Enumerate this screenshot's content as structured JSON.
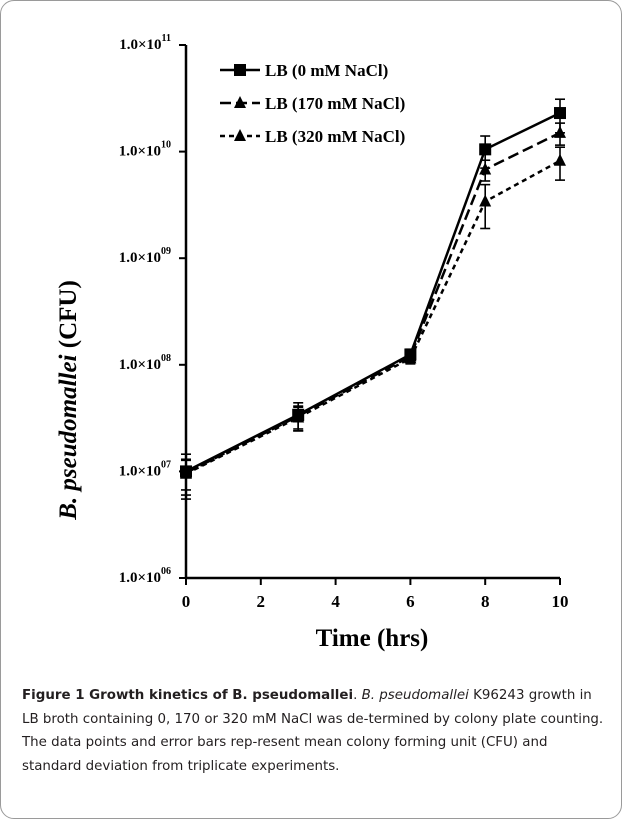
{
  "chart_data": {
    "type": "line",
    "xlabel": "Time (hrs)",
    "ylabel_italic": "B. pseudomallei",
    "ylabel_rest": " (CFU)",
    "y_scale": "log",
    "ylim": [
      1000000,
      100000000000
    ],
    "xlim": [
      0,
      10
    ],
    "x_ticks": [
      "0",
      "2",
      "4",
      "6",
      "8",
      "10"
    ],
    "y_ticks": [
      {
        "value": 1000000,
        "base": "1.0×10",
        "exp": "06"
      },
      {
        "value": 10000000,
        "base": "1.0×10",
        "exp": "07"
      },
      {
        "value": 100000000,
        "base": "1.0×10",
        "exp": "08"
      },
      {
        "value": 1000000000,
        "base": "1.0×10",
        "exp": "09"
      },
      {
        "value": 10000000000,
        "base": "1.0×10",
        "exp": "10"
      },
      {
        "value": 100000000000,
        "base": "1.0×10",
        "exp": "11"
      }
    ],
    "grid": false,
    "legend_position": "top-left",
    "x": [
      0,
      3,
      6,
      8,
      10
    ],
    "series": [
      {
        "name": "LB (0 mM NaCl)",
        "marker": "square",
        "dash": "solid",
        "values": [
          10000000,
          34000000,
          125000000,
          10500000000,
          23000000000
        ],
        "errors": [
          4500000,
          10000000,
          15000000,
          3500000000,
          8000000000
        ]
      },
      {
        "name": "LB (170 mM NaCl)",
        "marker": "triangle",
        "dash": "long",
        "values": [
          9700000,
          33000000,
          120000000,
          6800000000,
          15000000000
        ],
        "errors": [
          3000000,
          8000000,
          13000000,
          1500000000,
          3500000000
        ]
      },
      {
        "name": "LB (320 mM NaCl)",
        "marker": "triangle",
        "dash": "short",
        "values": [
          9500000,
          32000000,
          115000000,
          3400000000,
          8200000000
        ],
        "errors": [
          3500000,
          8000000,
          13000000,
          1500000000,
          2800000000
        ]
      }
    ]
  },
  "caption": {
    "title": "Figure 1 Growth kinetics of B. pseudomallei",
    "period": ". ",
    "species": "B. pseudomallei",
    "body": " K96243 growth in LB broth containing 0, 170 or 320 mM NaCl was de-termined by colony plate counting. The data points and error bars rep-resent mean colony forming unit (CFU) and standard deviation from triplicate experiments."
  }
}
